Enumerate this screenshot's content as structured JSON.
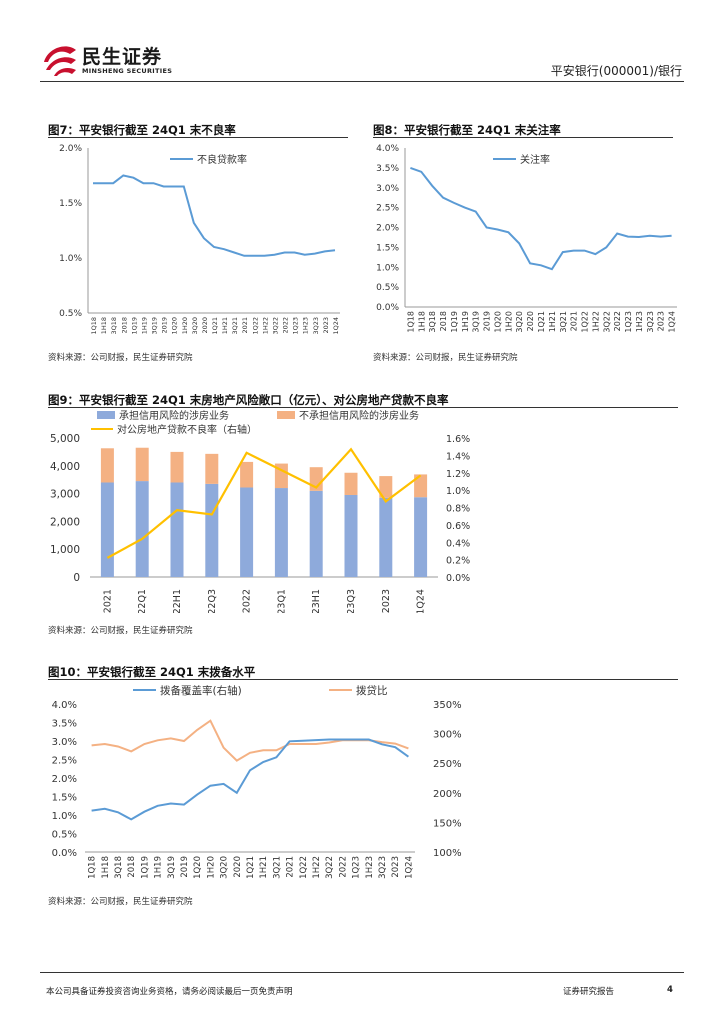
{
  "header": {
    "brand_cn": "民生证券",
    "brand_en": "MINSHENG SECURITIES",
    "report_title": "平安银行(000001)/银行"
  },
  "figures": [
    {
      "title": "图7：平安银行截至 24Q1 末不良率",
      "source": "资料来源：公司财报，民生证券研究院"
    },
    {
      "title": "图8：平安银行截至 24Q1 末关注率",
      "source": "资料来源：公司财报，民生证券研究院"
    },
    {
      "title": "图9：平安银行截至 24Q1 末房地产风险敞口（亿元）、对公房地产贷款不良率",
      "source": "资料来源：公司财报，民生证券研究院"
    },
    {
      "title": "图10：平安银行截至 24Q1 末拨备水平",
      "source": "资料来源：公司财报，民生证券研究院"
    }
  ],
  "footer": {
    "disclaimer": "本公司具备证券投资咨询业务资格，请务必阅读最后一页免责声明",
    "report_type": "证券研究报告",
    "page_number": "4"
  },
  "colors": {
    "blue": "#5b9bd5",
    "bar_blue": "#8eaadb",
    "bar_orange": "#f4b183",
    "yellow": "#ffc000",
    "orange": "#f4b183",
    "brand_red": "#c8102e"
  },
  "chart_data": [
    {
      "type": "line",
      "x": [
        "1Q18",
        "1H18",
        "3Q18",
        "2018",
        "1Q19",
        "1H19",
        "3Q19",
        "2019",
        "1Q20",
        "1H20",
        "3Q20",
        "2020",
        "1Q21",
        "1H21",
        "3Q21",
        "2021",
        "1Q22",
        "1H22",
        "3Q22",
        "2022",
        "1Q23",
        "1H23",
        "3Q23",
        "2023",
        "1Q24"
      ],
      "series": [
        {
          "name": "不良贷款率",
          "values": [
            1.68,
            1.68,
            1.68,
            1.75,
            1.73,
            1.68,
            1.68,
            1.65,
            1.65,
            1.65,
            1.32,
            1.18,
            1.1,
            1.08,
            1.05,
            1.02,
            1.02,
            1.02,
            1.03,
            1.05,
            1.05,
            1.03,
            1.04,
            1.06,
            1.07
          ]
        }
      ],
      "ylim": [
        0.5,
        2.0
      ],
      "yticks": [
        "0.5%",
        "1.0%",
        "1.5%",
        "2.0%"
      ],
      "legend": "top-center"
    },
    {
      "type": "line",
      "x": [
        "1Q18",
        "1H18",
        "3Q18",
        "2018",
        "1Q19",
        "1H19",
        "3Q19",
        "2019",
        "1Q20",
        "1H20",
        "3Q20",
        "2020",
        "1Q21",
        "1H21",
        "3Q21",
        "2021",
        "1Q22",
        "1H22",
        "3Q22",
        "2022",
        "1Q23",
        "1H23",
        "3Q23",
        "2023",
        "1Q24"
      ],
      "series": [
        {
          "name": "关注率",
          "values": [
            3.5,
            3.4,
            3.05,
            2.75,
            2.62,
            2.5,
            2.4,
            2.0,
            1.95,
            1.88,
            1.6,
            1.1,
            1.05,
            0.95,
            1.38,
            1.42,
            1.42,
            1.33,
            1.5,
            1.85,
            1.77,
            1.76,
            1.79,
            1.77,
            1.79
          ]
        }
      ],
      "ylim": [
        0,
        4.0
      ],
      "yticks": [
        "0.0%",
        "0.5%",
        "1.0%",
        "1.5%",
        "2.0%",
        "2.5%",
        "3.0%",
        "3.5%",
        "4.0%"
      ],
      "legend": "top-center"
    },
    {
      "type": "bar",
      "categories": [
        "2021",
        "22Q1",
        "22H1",
        "22Q3",
        "2022",
        "23Q1",
        "23H1",
        "23Q3",
        "2023",
        "1Q24"
      ],
      "series": [
        {
          "name": "承担信用风险的涉房业务",
          "values": [
            3400,
            3450,
            3400,
            3350,
            3220,
            3200,
            3100,
            2950,
            2850,
            2870
          ],
          "axis": "left",
          "kind": "stacked-bar"
        },
        {
          "name": "不承担信用风险的涉房业务",
          "values": [
            1230,
            1200,
            1100,
            1080,
            920,
            880,
            850,
            800,
            780,
            820
          ],
          "axis": "left",
          "kind": "stacked-bar"
        },
        {
          "name": "对公房地产贷款不良率（右轴）",
          "values": [
            0.22,
            0.44,
            0.77,
            0.72,
            1.43,
            1.23,
            1.03,
            1.47,
            0.87,
            1.17
          ],
          "axis": "right",
          "kind": "line"
        }
      ],
      "ylim": [
        0,
        5000
      ],
      "yticks": [
        "0",
        "1,000",
        "2,000",
        "3,000",
        "4,000",
        "5,000"
      ],
      "y2lim": [
        0,
        1.6
      ],
      "y2ticks": [
        "0.0%",
        "0.2%",
        "0.4%",
        "0.6%",
        "0.8%",
        "1.0%",
        "1.2%",
        "1.4%",
        "1.6%"
      ],
      "legend": "top"
    },
    {
      "type": "line",
      "x": [
        "1Q18",
        "1H18",
        "3Q18",
        "2018",
        "1Q19",
        "1H19",
        "3Q19",
        "2019",
        "1Q20",
        "1H20",
        "3Q20",
        "2020",
        "1Q21",
        "1H21",
        "3Q21",
        "2021",
        "1Q22",
        "1H22",
        "3Q22",
        "2022",
        "1Q23",
        "1H23",
        "3Q23",
        "2023",
        "1Q24"
      ],
      "series": [
        {
          "name": "拨备覆盖率(右轴)",
          "values": [
            170,
            173,
            167,
            155,
            168,
            178,
            182,
            180,
            197,
            212,
            215,
            200,
            238,
            252,
            260,
            287,
            288,
            289,
            290,
            290,
            290,
            290,
            282,
            277,
            261
          ],
          "axis": "right"
        },
        {
          "name": "拨贷比",
          "values": [
            2.88,
            2.92,
            2.85,
            2.72,
            2.92,
            3.02,
            3.07,
            3.0,
            3.3,
            3.55,
            2.82,
            2.47,
            2.68,
            2.75,
            2.75,
            2.92,
            2.92,
            2.92,
            2.96,
            3.02,
            3.02,
            3.02,
            2.97,
            2.93,
            2.8
          ],
          "axis": "left"
        }
      ],
      "ylim": [
        0,
        4.0
      ],
      "yticks": [
        "0.0%",
        "0.5%",
        "1.0%",
        "1.5%",
        "2.0%",
        "2.5%",
        "3.0%",
        "3.5%",
        "4.0%"
      ],
      "y2lim": [
        100,
        350
      ],
      "y2ticks": [
        "100%",
        "150%",
        "200%",
        "250%",
        "300%",
        "350%"
      ],
      "legend": "top"
    }
  ]
}
